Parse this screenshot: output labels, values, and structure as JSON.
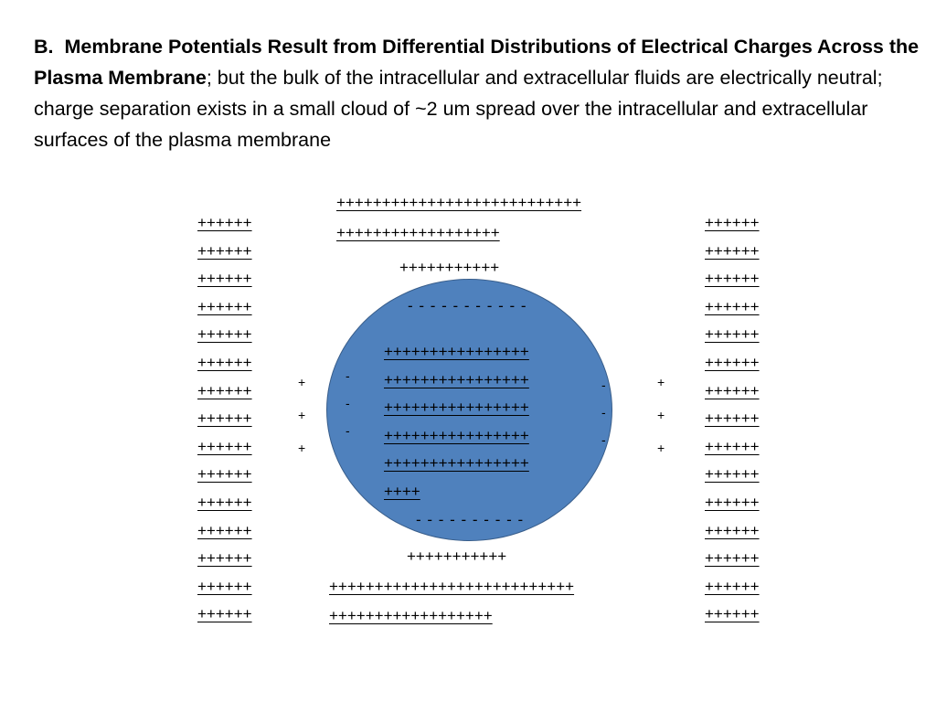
{
  "title": {
    "label": "B.",
    "bold": "Membrane Potentials Result from Differential Distributions of Electrical Charges Across the Plasma Membrane",
    "rest": "; but the bulk of the intracellular and extracellular fluids are electrically neutral; charge separation exists in a small cloud of ~2 um spread over the intracellular and extracellular surfaces of the plasma membrane"
  },
  "diagram": {
    "left_column": [
      "++++++",
      "++++++",
      "++++++",
      "++++++",
      "++++++",
      "++++++",
      "++++++",
      "++++++",
      "++++++",
      "++++++",
      "++++++",
      "++++++",
      "++++++",
      "++++++",
      "++++++"
    ],
    "right_column": [
      "++++++",
      "++++++",
      "++++++",
      "++++++",
      "++++++",
      "++++++",
      "++++++",
      "++++++",
      "++++++",
      "++++++",
      "++++++",
      "++++++",
      "++++++",
      "++++++",
      "++++++"
    ],
    "top_lines": [
      "+++++++++++++++++++++++++++",
      "++++++++++++++++++"
    ],
    "top_near_membrane": "+++++++++++",
    "cell_top_negative": "- - - - - - - - - - -",
    "inner_lines": [
      "++++++++++++++++",
      "++++++++++++++++",
      "++++++++++++++++",
      "++++++++++++++++",
      "++++++++++++++++",
      "++++"
    ],
    "cell_bottom_negative": "- - - - - - - - - -",
    "bottom_near_membrane": "+++++++++++",
    "bottom_lines": [
      "+++++++++++++++++++++++++++",
      "++++++++++++++++++"
    ],
    "left_outer_plus": [
      "+",
      "+",
      "+"
    ],
    "left_inner_minus": [
      "-",
      "-",
      "-"
    ],
    "right_inner_minus": [
      "-",
      "-",
      "-"
    ],
    "right_outer_plus": [
      "+",
      "+",
      "+"
    ],
    "colors": {
      "cell_fill": "#4f81bd",
      "cell_border": "#385d8a",
      "text": "#000000"
    }
  }
}
